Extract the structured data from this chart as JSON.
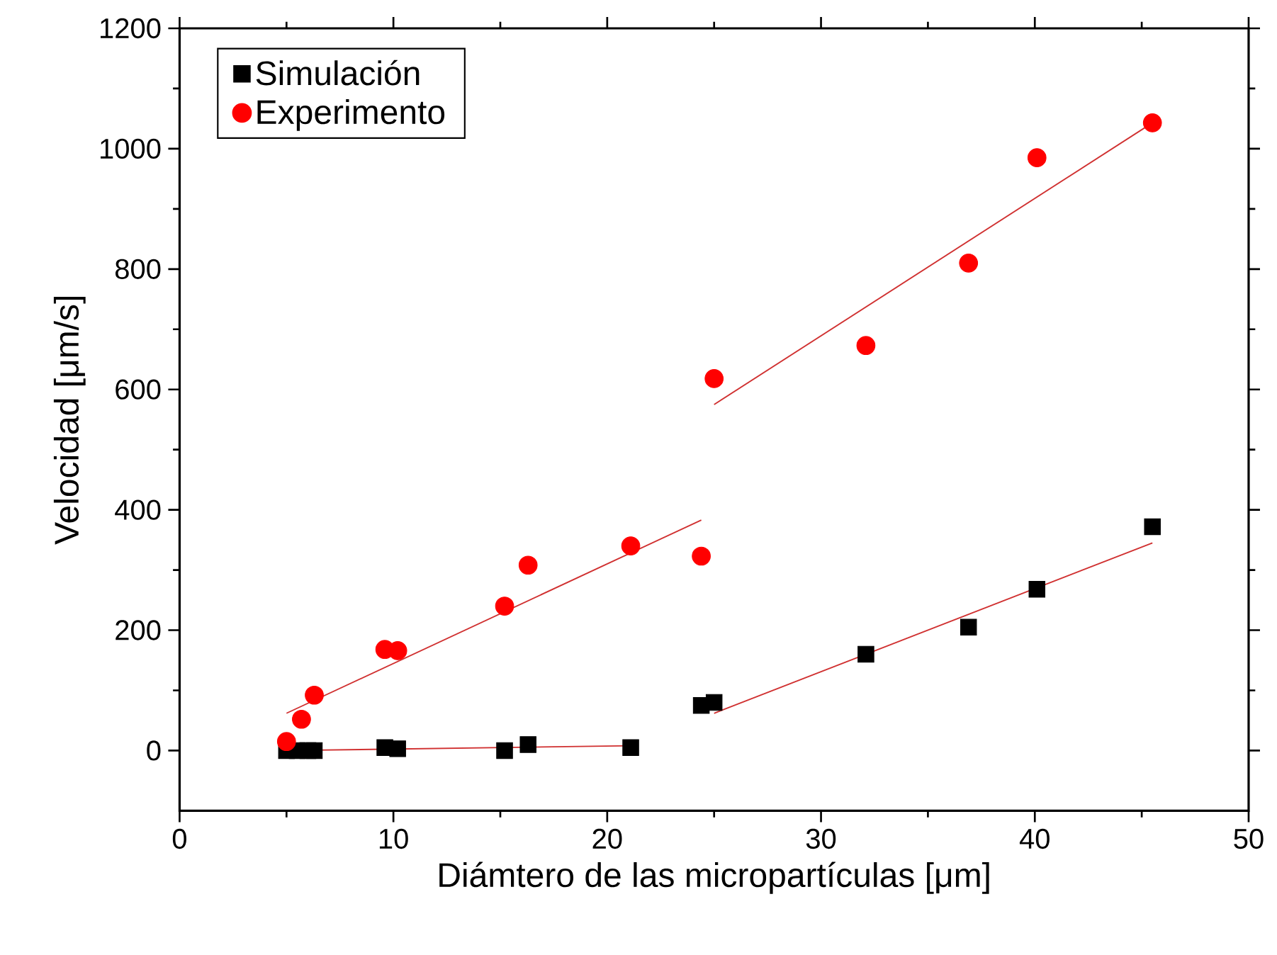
{
  "chart_data": {
    "type": "scatter",
    "xlabel": "Diámtero de las micropartículas [μm]",
    "ylabel": "Velocidad [μm/s]",
    "xlim": [
      0,
      50
    ],
    "xticks": [
      0,
      10,
      20,
      30,
      40,
      50
    ],
    "ylim": [
      -100,
      1200
    ],
    "yticks": [
      0,
      200,
      400,
      600,
      800,
      1000,
      1200
    ],
    "legend": "top left",
    "series": [
      {
        "name": "Simulación",
        "color": "#000000",
        "marker": "square",
        "x": [
          5,
          5.5,
          6,
          6.3,
          9.6,
          10.2,
          15.2,
          16.3,
          21.1,
          24.4,
          25,
          32.1,
          36.9,
          40.1,
          45.5
        ],
        "values": [
          0,
          0,
          0,
          0,
          5,
          3,
          0,
          10,
          5,
          75,
          80,
          160,
          205,
          268,
          372
        ]
      },
      {
        "name": "Experimento",
        "color": "#ff0000",
        "marker": "circle",
        "x": [
          5,
          5.7,
          6.3,
          9.6,
          10.2,
          15.2,
          16.3,
          21.1,
          24.4,
          25,
          32.1,
          36.9,
          40.1,
          45.5
        ],
        "values": [
          15,
          52,
          92,
          168,
          166,
          240,
          308,
          340,
          323,
          618,
          673,
          810,
          985,
          1043
        ]
      },
      {
        "type": "line",
        "color": "#d03030",
        "x": [
          5,
          24.4
        ],
        "values": [
          62,
          383
        ]
      },
      {
        "type": "line",
        "color": "#d03030",
        "x": [
          25,
          45.5
        ],
        "values": [
          575,
          1043
        ]
      },
      {
        "type": "line",
        "color": "#d03030",
        "x": [
          5,
          21.1
        ],
        "values": [
          0,
          8
        ]
      },
      {
        "type": "line",
        "color": "#d03030",
        "x": [
          25,
          45.5
        ],
        "values": [
          62,
          345
        ]
      }
    ]
  }
}
